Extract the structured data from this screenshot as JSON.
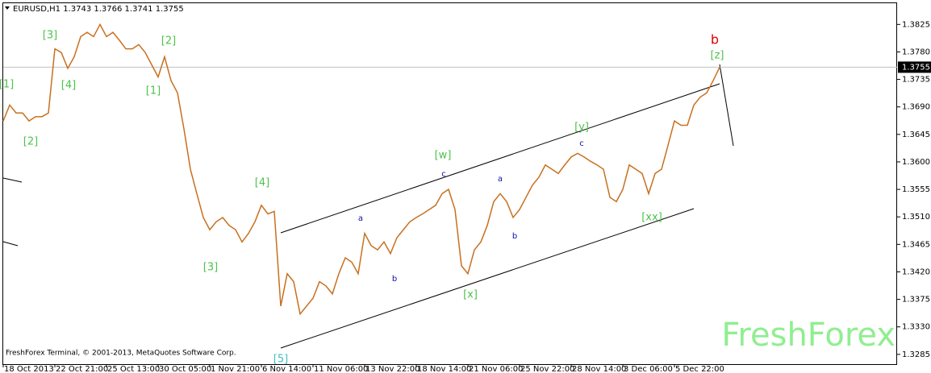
{
  "chart_data": {
    "type": "line",
    "title": "EURUSD,H1  1.3743 1.3766 1.3741 1.3755",
    "footer": "FreshForex Terminal, © 2001-2013, MetaQuotes Software Corp.",
    "watermark": "FreshForex",
    "current_price": 1.3755,
    "color": "#c87020",
    "categories": [
      "18 Oct 2013",
      null,
      null,
      null,
      null,
      null,
      null,
      null,
      "22 Oct 21:00",
      null,
      null,
      null,
      null,
      null,
      null,
      null,
      "25 Oct 13:00",
      null,
      null,
      null,
      null,
      null,
      null,
      null,
      "30 Oct 05:00",
      null,
      null,
      null,
      null,
      null,
      null,
      null,
      "1 Nov 21:00",
      null,
      null,
      null,
      null,
      null,
      null,
      null,
      "6 Nov 14:00",
      null,
      null,
      null,
      null,
      null,
      null,
      null,
      "11 Nov 06:00",
      null,
      null,
      null,
      null,
      null,
      null,
      null,
      "13 Nov 22:00",
      null,
      null,
      null,
      null,
      null,
      null,
      null,
      "18 Nov 14:00",
      null,
      null,
      null,
      null,
      null,
      null,
      null,
      "21 Nov 06:00",
      null,
      null,
      null,
      null,
      null,
      null,
      null,
      "25 Nov 22:00",
      null,
      null,
      null,
      null,
      null,
      null,
      null,
      "28 Nov 14:00",
      null,
      null,
      null,
      null,
      null,
      null,
      null,
      "3 Dec 06:00",
      null,
      null,
      null,
      null,
      null,
      null,
      null,
      "5 Dec 22:00",
      null,
      null,
      null,
      null,
      null,
      null,
      null
    ],
    "values": [
      1.3667,
      1.3693,
      1.368,
      1.368,
      1.3667,
      1.3674,
      1.3674,
      1.368,
      1.3785,
      1.3779,
      1.3753,
      1.3772,
      1.3805,
      1.3812,
      1.3805,
      1.3825,
      1.3805,
      1.3812,
      1.3799,
      1.3785,
      1.3785,
      1.3792,
      1.3779,
      1.3759,
      1.3739,
      1.3772,
      1.3733,
      1.3713,
      1.3654,
      1.3588,
      1.3548,
      1.3509,
      1.3489,
      1.3502,
      1.3509,
      1.3496,
      1.3489,
      1.3469,
      1.3483,
      1.3502,
      1.3529,
      1.3515,
      1.3519,
      1.3364,
      1.3417,
      1.3404,
      1.3351,
      1.3364,
      1.3377,
      1.3404,
      1.3397,
      1.3384,
      1.3417,
      1.3443,
      1.3436,
      1.3417,
      1.3483,
      1.3463,
      1.3456,
      1.3469,
      1.345,
      1.3476,
      1.3489,
      1.3502,
      1.3509,
      1.3515,
      1.3522,
      1.3529,
      1.3548,
      1.3555,
      1.3522,
      1.343,
      1.3417,
      1.3456,
      1.3469,
      1.3496,
      1.3535,
      1.3548,
      1.3535,
      1.3509,
      1.3522,
      1.3542,
      1.3562,
      1.3575,
      1.3595,
      1.3588,
      1.3581,
      1.3595,
      1.3608,
      1.3614,
      1.3608,
      1.3601,
      1.3595,
      1.3588,
      1.3542,
      1.3535,
      1.3555,
      1.3595,
      1.3588,
      1.3581,
      1.3548,
      1.3581,
      1.3588,
      1.3627,
      1.3667,
      1.366,
      1.366,
      1.3693,
      1.3706,
      1.3713,
      1.3733,
      1.3755
    ],
    "ylim": [
      1.3269,
      1.3861
    ],
    "yticks": [
      1.3285,
      {
        "value": 1.333,
        "label": "1.3330"
      },
      1.3375,
      {
        "value": 1.342,
        "label": "1.3420"
      },
      1.3465,
      {
        "value": 1.351,
        "label": "1.3510"
      },
      1.3555,
      {
        "value": 1.36,
        "label": "1.3600"
      },
      1.3645,
      {
        "value": 1.369,
        "label": "1.3690"
      },
      1.3735,
      {
        "value": 1.378,
        "label": "1.3780"
      },
      1.3825
    ],
    "annotations": [
      "[1]",
      "[2]",
      "[3]",
      "[4]",
      "[1]",
      "[2]",
      "[3]",
      "[4]",
      "[5]",
      "a",
      "b",
      "[w]",
      "c",
      "[x]",
      "a",
      "b",
      "[y]",
      "c",
      "[xx]",
      "[z]",
      "b"
    ]
  }
}
